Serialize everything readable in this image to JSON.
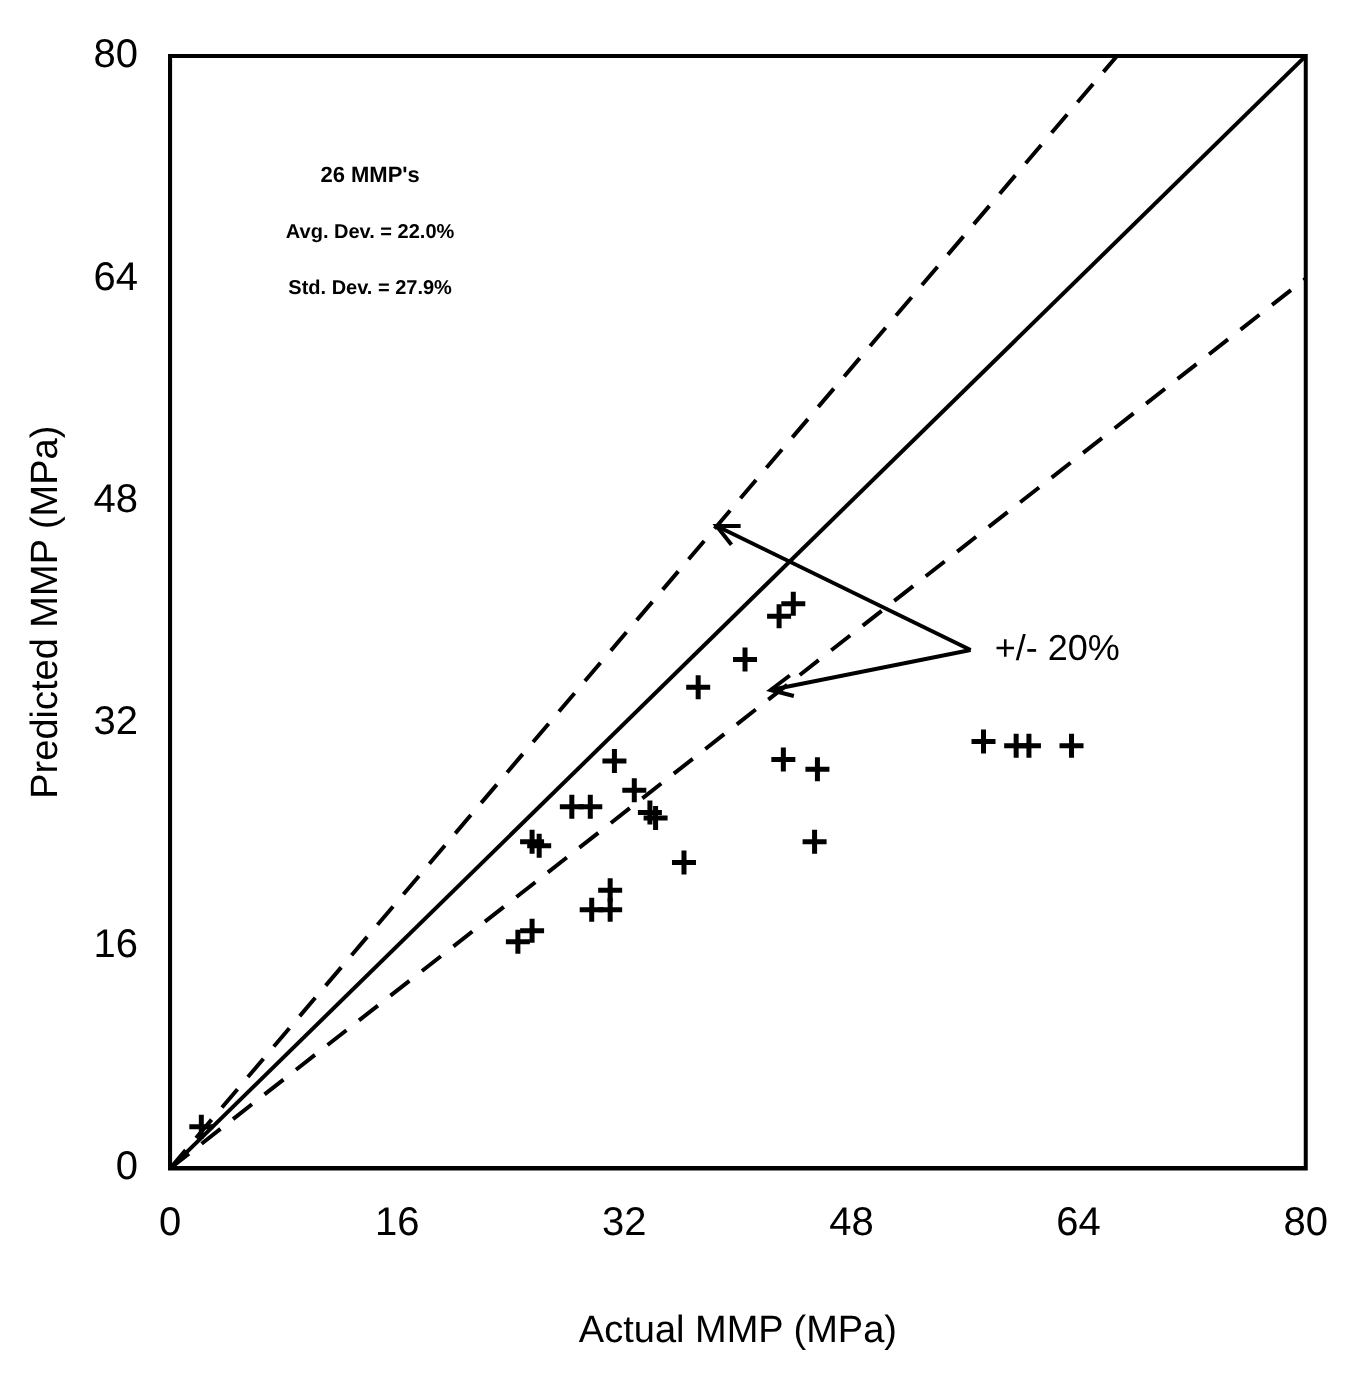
{
  "chart_data": {
    "type": "scatter",
    "xlabel": "Actual MMP (MPa)",
    "ylabel": "Predicted MMP (MPa)",
    "xlim": [
      0,
      80
    ],
    "ylim": [
      0,
      80
    ],
    "xticks": [
      0,
      16,
      32,
      48,
      64,
      80
    ],
    "yticks": [
      0,
      16,
      32,
      48,
      64,
      80
    ],
    "grid": false,
    "legend": false,
    "marker": "cross",
    "series": [
      {
        "color": "#000000",
        "x": [
          2.2,
          24.5,
          25.5,
          25.5,
          26.0,
          28.3,
          29.6,
          29.7,
          31.0,
          31.0,
          31.3,
          32.7,
          33.8,
          34.2,
          36.2,
          37.2,
          40.5,
          42.9,
          43.9,
          43.2,
          45.6,
          45.4,
          57.3,
          59.6,
          60.5,
          63.5
        ],
        "values": [
          3.0,
          16.3,
          17.1,
          23.5,
          23.2,
          26.0,
          26.0,
          18.6,
          18.6,
          20.0,
          29.3,
          27.2,
          25.6,
          25.2,
          22.0,
          34.6,
          36.6,
          39.7,
          40.6,
          29.4,
          28.7,
          23.5,
          30.7,
          30.4,
          30.4,
          30.4
        ]
      },
      {
        "type": "line",
        "color": "#000000",
        "line_style": "solid",
        "marker": "none",
        "x": [
          0,
          80
        ],
        "values": [
          0,
          80
        ]
      },
      {
        "type": "line",
        "color": "#000000",
        "line_style": "dashed",
        "marker": "none",
        "x": [
          0,
          66.7
        ],
        "values": [
          0,
          80
        ]
      },
      {
        "type": "line",
        "color": "#000000",
        "line_style": "dashed",
        "marker": "none",
        "x": [
          0,
          80
        ],
        "values": [
          0,
          64
        ]
      }
    ],
    "annotations": [
      "26 MMP's",
      "Avg. Dev. = 22.0%",
      "Std. Dev. = 27.9%",
      {
        "text": "+/- 20%",
        "x": 38.5,
        "y": 46.2
      }
    ]
  }
}
